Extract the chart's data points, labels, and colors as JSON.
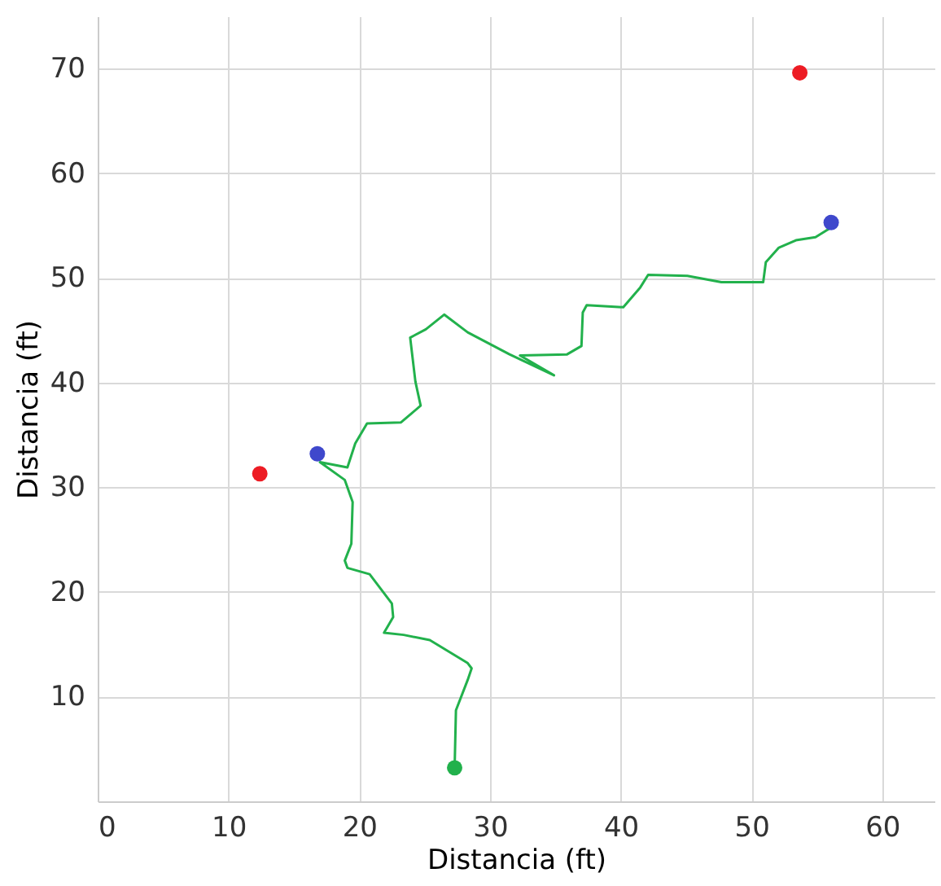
{
  "chart_data": {
    "type": "line",
    "xlabel": "Distancia (ft)",
    "ylabel": "Distancia (ft)",
    "xlim": [
      0,
      64
    ],
    "ylim": [
      0,
      75
    ],
    "xticks": [
      0,
      10,
      20,
      30,
      40,
      50,
      60
    ],
    "yticks": [
      10,
      20,
      30,
      40,
      50,
      60,
      70
    ],
    "grid": true,
    "series": [
      {
        "color": "#22b14c",
        "marker": "none",
        "x": [
          27.3,
          27.4,
          28.3,
          28.6,
          28.3,
          25.4,
          23.4,
          21.9,
          22.6,
          22.5,
          20.8,
          19.1,
          18.9,
          19.4,
          19.5,
          18.9,
          17.0,
          19.1,
          19.7,
          20.6,
          23.2,
          24.7,
          24.3,
          23.9,
          25.1,
          26.5,
          28.3,
          31.5,
          34.9,
          32.3,
          35.9,
          37.0,
          37.1,
          37.4,
          40.2,
          41.5,
          42.1,
          45.1,
          47.7,
          50.9,
          51.1,
          52.1,
          53.4,
          54.9,
          56.2
        ],
        "values": [
          3.2,
          8.7,
          11.6,
          12.7,
          13.2,
          15.4,
          15.9,
          16.1,
          17.6,
          18.9,
          21.7,
          22.3,
          23.0,
          24.6,
          28.6,
          30.7,
          32.4,
          31.9,
          34.2,
          36.1,
          36.2,
          37.8,
          40.1,
          44.3,
          45.1,
          46.5,
          44.8,
          42.7,
          40.7,
          42.6,
          42.7,
          43.5,
          46.7,
          47.4,
          47.2,
          49.1,
          50.3,
          50.2,
          49.6,
          49.6,
          51.5,
          52.9,
          53.6,
          53.9,
          54.9
        ]
      },
      {
        "type": "scatter",
        "color": "#22b14c",
        "marker": "circle",
        "x": [
          27.3
        ],
        "values": [
          3.2
        ]
      },
      {
        "type": "scatter",
        "color": "#3f48cc",
        "marker": "circle",
        "x": [
          16.8,
          56.1
        ],
        "values": [
          33.2,
          55.3
        ]
      },
      {
        "type": "scatter",
        "color": "#ed1c24",
        "marker": "circle",
        "x": [
          12.4,
          53.7
        ],
        "values": [
          31.3,
          69.6
        ]
      }
    ]
  }
}
